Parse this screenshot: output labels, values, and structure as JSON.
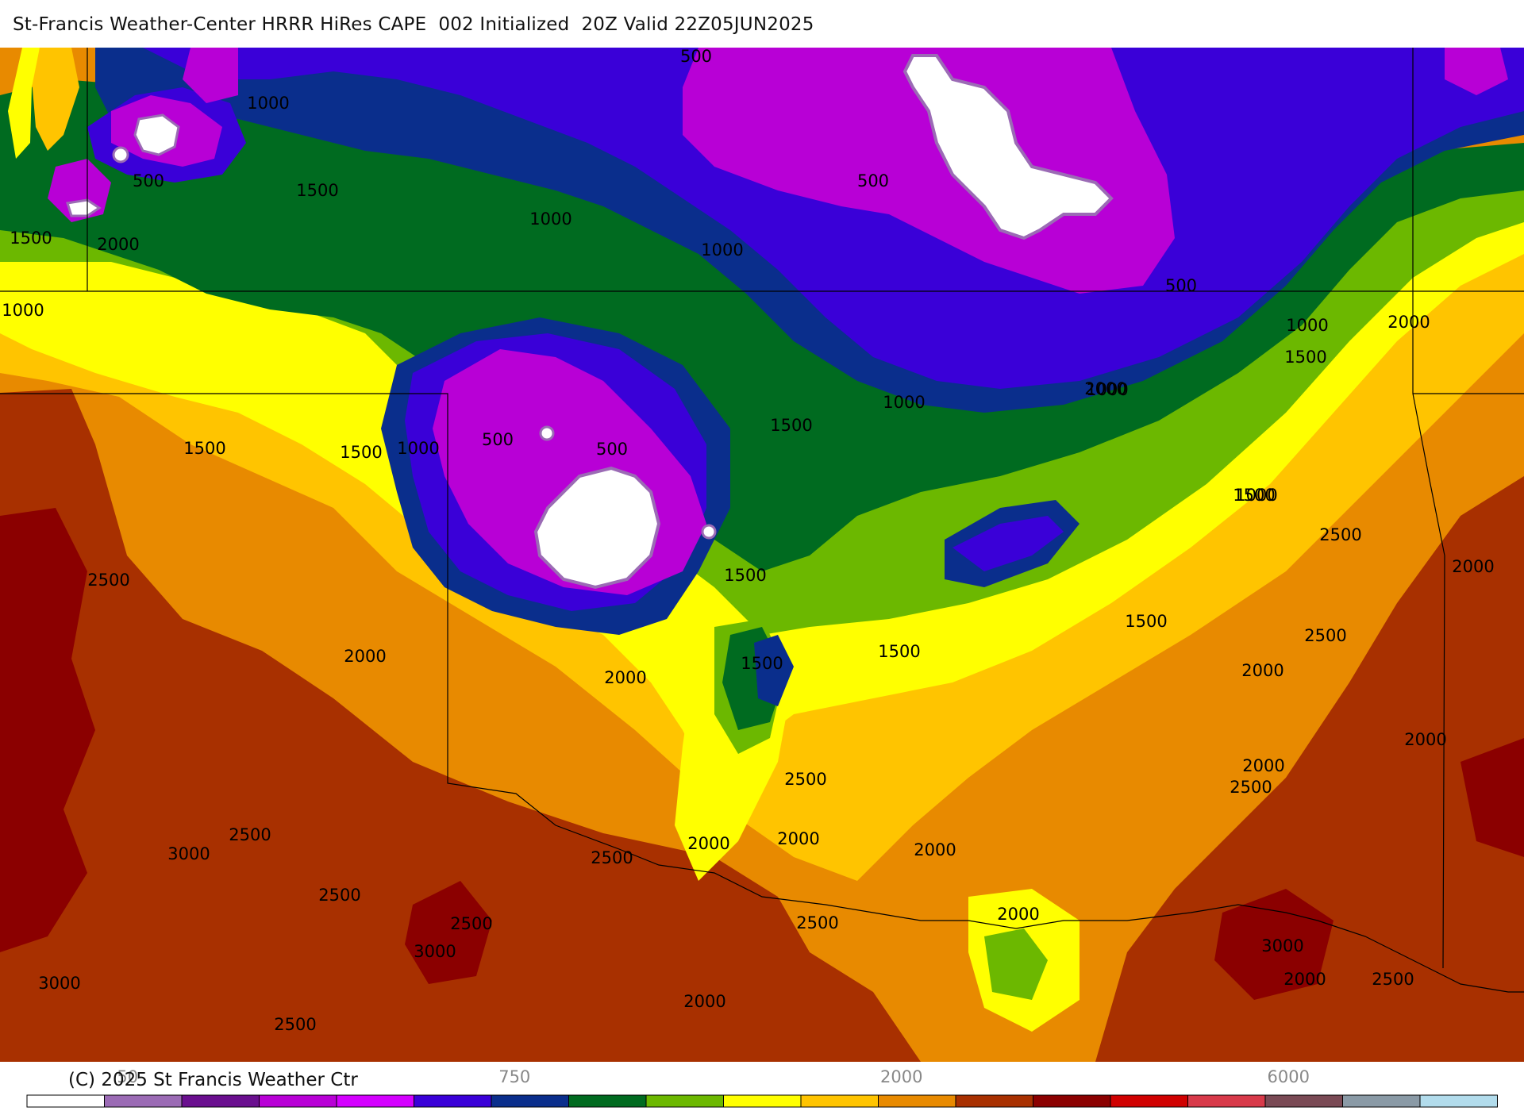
{
  "header": {
    "title": "St-Francis Weather-Center HRRR HiRes CAPE  002 Initialized  20Z Valid 22Z05JUN2025"
  },
  "footer": {
    "copyright": "(C) 2025 St Francis Weather Ctr"
  },
  "colorbar": {
    "colors": [
      "#ffffff",
      "#9b6bb5",
      "#6a0f8f",
      "#b800d6",
      "#d400ff",
      "#3a00d8",
      "#0a2e8c",
      "#006b20",
      "#6cb800",
      "#ffff00",
      "#ffc400",
      "#e88a00",
      "#a83000",
      "#8b0000",
      "#d00000",
      "#d83a4a",
      "#7a4a55",
      "#8a9aa6",
      "#b2dcec"
    ],
    "ticks": [
      {
        "label": "50",
        "index": 1
      },
      {
        "label": "750",
        "index": 6
      },
      {
        "label": "2000",
        "index": 11
      },
      {
        "label": "6000",
        "index": 16
      }
    ]
  },
  "cape_colors": {
    "c500": "#9b6bb5",
    "c1000": "#b800d6",
    "c1500": "#6cb800",
    "c2000": "#ffff00",
    "c2500": "#e88a00",
    "c3000": "#a83000"
  },
  "contour_labels": [
    {
      "text": "500"
    },
    {
      "text": "1000"
    },
    {
      "text": "500"
    },
    {
      "text": "1500"
    },
    {
      "text": "1000"
    },
    {
      "text": "2000"
    },
    {
      "text": "1500"
    },
    {
      "text": "1000"
    },
    {
      "text": "1000"
    },
    {
      "text": "500"
    },
    {
      "text": "500"
    },
    {
      "text": "1000"
    },
    {
      "text": "1500"
    },
    {
      "text": "2000"
    },
    {
      "text": "2000"
    },
    {
      "text": "1500"
    },
    {
      "text": "1500"
    },
    {
      "text": "1000"
    },
    {
      "text": "500"
    },
    {
      "text": "500"
    },
    {
      "text": "1500"
    },
    {
      "text": "1000"
    },
    {
      "text": "1000"
    },
    {
      "text": "2500"
    },
    {
      "text": "2000"
    },
    {
      "text": "1500"
    },
    {
      "text": "1000"
    },
    {
      "text": "1500"
    },
    {
      "text": "1500"
    },
    {
      "text": "2000"
    },
    {
      "text": "1500"
    },
    {
      "text": "2000"
    },
    {
      "text": "1500"
    },
    {
      "text": "2000"
    },
    {
      "text": "2500"
    },
    {
      "text": "2500"
    },
    {
      "text": "2000"
    },
    {
      "text": "2500"
    },
    {
      "text": "2000"
    },
    {
      "text": "2500"
    },
    {
      "text": "2500"
    },
    {
      "text": "3000"
    },
    {
      "text": "2500"
    },
    {
      "text": "2000"
    },
    {
      "text": "2000"
    },
    {
      "text": "2500"
    },
    {
      "text": "2000"
    },
    {
      "text": "2500"
    },
    {
      "text": "2000"
    },
    {
      "text": "3000"
    },
    {
      "text": "2500"
    },
    {
      "text": "3000"
    },
    {
      "text": "2000"
    },
    {
      "text": "3000"
    },
    {
      "text": "2500"
    },
    {
      "text": "2500"
    },
    {
      "text": "2000"
    }
  ]
}
